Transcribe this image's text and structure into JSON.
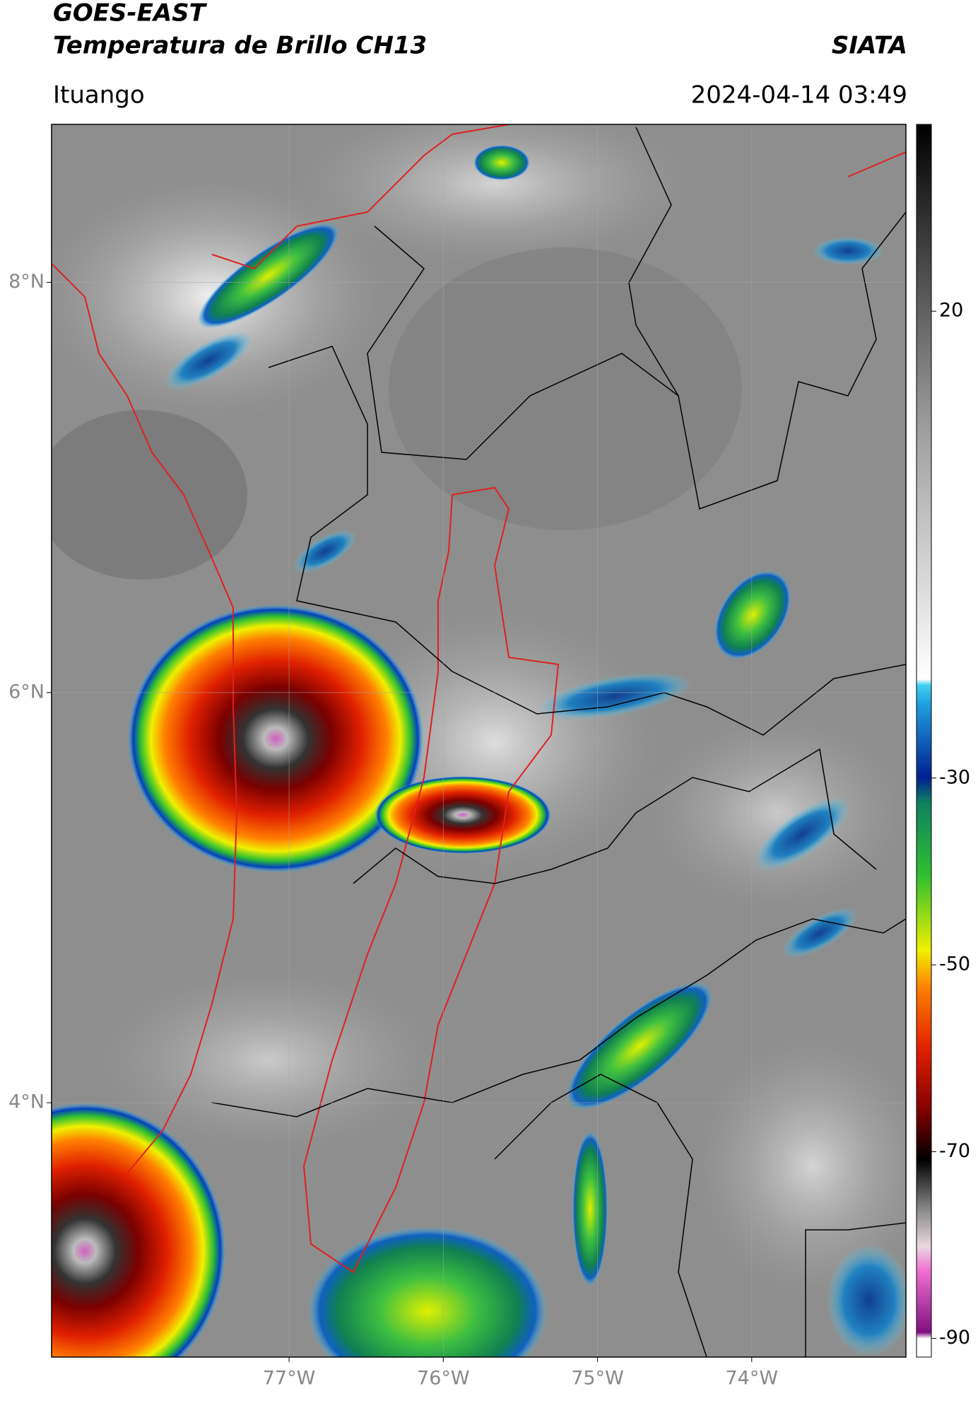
{
  "header": {
    "title": "GOES-EAST",
    "subtitle": "Temperatura de Brillo CH13",
    "brand": "SIATA",
    "location": "Ituango",
    "timestamp": "2024-04-14 03:49"
  },
  "map": {
    "xlim": [
      -78.54,
      -73.0
    ],
    "ylim": [
      2.76,
      8.77
    ],
    "yticks": [
      {
        "value": 8,
        "label": "8°N"
      },
      {
        "value": 6,
        "label": "6°N"
      },
      {
        "value": 4,
        "label": "4°N"
      }
    ],
    "xticks": [
      {
        "value": -77,
        "label": "77°W"
      },
      {
        "value": -76,
        "label": "76°W"
      },
      {
        "value": -75,
        "label": "75°W"
      },
      {
        "value": -74,
        "label": "74°W"
      }
    ]
  },
  "colorbar": {
    "lim": [
      -92,
      40
    ],
    "ticks": [
      20,
      -30,
      -50,
      -70,
      -90
    ]
  }
}
